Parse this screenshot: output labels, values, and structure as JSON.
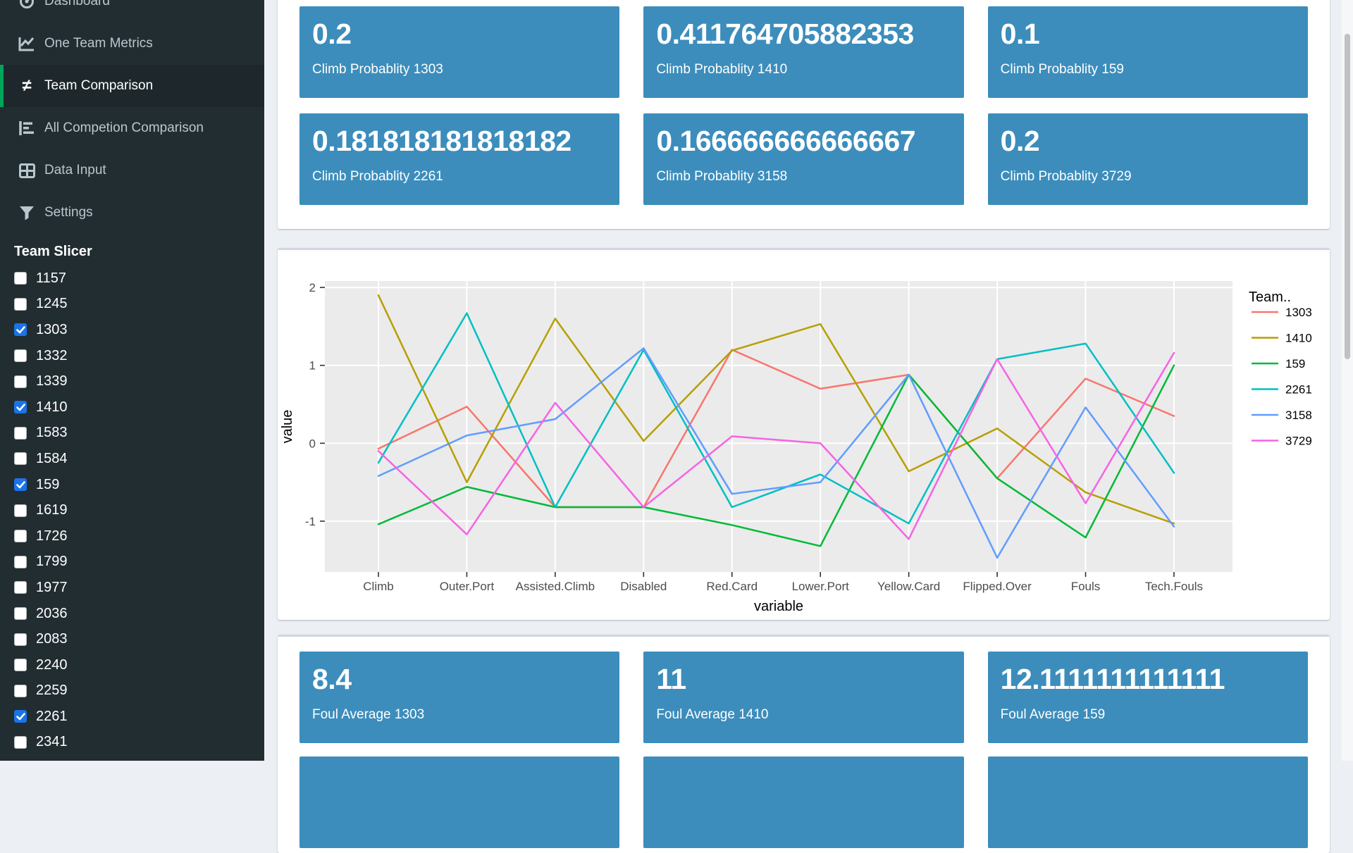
{
  "sidebar": {
    "menu": [
      {
        "label": "Dashboard",
        "icon": "dashboard-icon",
        "active": false
      },
      {
        "label": "One Team Metrics",
        "icon": "line-chart-icon",
        "active": false
      },
      {
        "label": "Team Comparison",
        "icon": "not-equal-icon",
        "active": true
      },
      {
        "label": "All Competion Comparison",
        "icon": "bar-chart-icon",
        "active": false
      },
      {
        "label": "Data Input",
        "icon": "table-icon",
        "active": false
      },
      {
        "label": "Settings",
        "icon": "filter-icon",
        "active": false
      }
    ],
    "slicer": {
      "title": "Team Slicer",
      "teams": [
        {
          "label": "1157",
          "checked": false
        },
        {
          "label": "1245",
          "checked": false
        },
        {
          "label": "1303",
          "checked": true
        },
        {
          "label": "1332",
          "checked": false
        },
        {
          "label": "1339",
          "checked": false
        },
        {
          "label": "1410",
          "checked": true
        },
        {
          "label": "1583",
          "checked": false
        },
        {
          "label": "1584",
          "checked": false
        },
        {
          "label": "159",
          "checked": true
        },
        {
          "label": "1619",
          "checked": false
        },
        {
          "label": "1726",
          "checked": false
        },
        {
          "label": "1799",
          "checked": false
        },
        {
          "label": "1977",
          "checked": false
        },
        {
          "label": "2036",
          "checked": false
        },
        {
          "label": "2083",
          "checked": false
        },
        {
          "label": "2240",
          "checked": false
        },
        {
          "label": "2259",
          "checked": false
        },
        {
          "label": "2261",
          "checked": true
        },
        {
          "label": "2341",
          "checked": false
        }
      ]
    },
    "colors": {
      "bg": "#222d32",
      "active_bg": "#1e282c",
      "active_border": "#00a65a",
      "text": "#b8c7ce",
      "checkbox_checked": "#1a73e8"
    }
  },
  "value_boxes": {
    "accent": "#3c8dbc",
    "top": [
      {
        "value": "0.2",
        "label": "Climb Probablity 1303"
      },
      {
        "value": "0.411764705882353",
        "label": "Climb Probablity 1410"
      },
      {
        "value": "0.1",
        "label": "Climb Probablity 159"
      },
      {
        "value": "0.181818181818182",
        "label": "Climb Probablity 2261"
      },
      {
        "value": "0.166666666666667",
        "label": "Climb Probablity 3158"
      },
      {
        "value": "0.2",
        "label": "Climb Probablity 3729"
      }
    ],
    "bottom": [
      {
        "value": "8.4",
        "label": "Foul Average 1303"
      },
      {
        "value": "11",
        "label": "Foul Average 1410"
      },
      {
        "value": "12.1111111111111",
        "label": "Foul Average 159"
      }
    ],
    "bottom_partial_row_count": 3
  },
  "chart_data": {
    "type": "line",
    "title": "",
    "xlabel": "variable",
    "ylabel": "value",
    "legend_title": "Team..",
    "legend_position": "right",
    "grid": "major-white",
    "panel_bg": "#ebebeb",
    "yticks": [
      2,
      1,
      0,
      -1
    ],
    "ylim": [
      -1.65,
      2.08
    ],
    "categories": [
      "Climb",
      "Outer.Port",
      "Assisted.Climb",
      "Disabled",
      "Red.Card",
      "Lower.Port",
      "Yellow.Card",
      "Flipped.Over",
      "Fouls",
      "Tech.Fouls"
    ],
    "series": [
      {
        "name": "1303",
        "color": "#F8766D",
        "values": [
          -0.07,
          0.47,
          -0.82,
          -0.82,
          1.2,
          0.7,
          0.88,
          -0.45,
          0.83,
          0.35
        ]
      },
      {
        "name": "1410",
        "color": "#B79F00",
        "values": [
          1.9,
          -0.5,
          1.6,
          0.03,
          1.19,
          1.53,
          -0.36,
          0.19,
          -0.63,
          -1.03
        ]
      },
      {
        "name": "159",
        "color": "#00BA38",
        "values": [
          -1.04,
          -0.56,
          -0.82,
          -0.82,
          -1.05,
          -1.32,
          0.88,
          -0.45,
          -1.21,
          1.0
        ]
      },
      {
        "name": "2261",
        "color": "#00BFC4",
        "values": [
          -0.25,
          1.67,
          -0.82,
          1.2,
          -0.82,
          -0.4,
          -1.03,
          1.08,
          1.28,
          -0.38
        ]
      },
      {
        "name": "3158",
        "color": "#619CFF",
        "values": [
          -0.42,
          0.1,
          0.31,
          1.22,
          -0.65,
          -0.5,
          0.88,
          -1.47,
          0.46,
          -1.07
        ]
      },
      {
        "name": "3729",
        "color": "#F564E3",
        "values": [
          -0.1,
          -1.17,
          0.52,
          -0.82,
          0.09,
          0.0,
          -1.23,
          1.08,
          -0.77,
          1.16
        ]
      }
    ]
  }
}
